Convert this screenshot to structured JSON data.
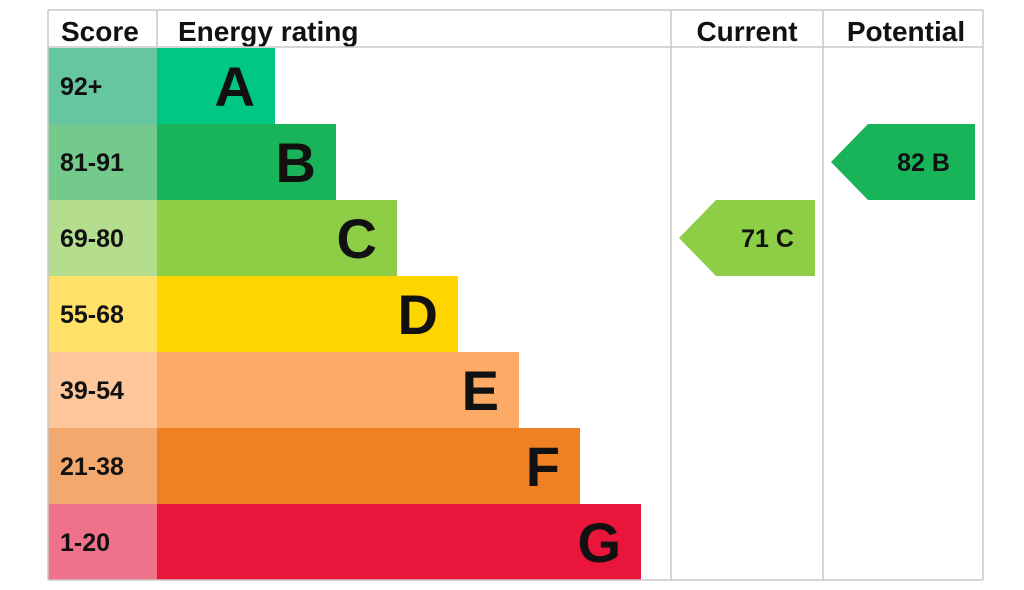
{
  "chart_data": {
    "type": "bar",
    "headers": {
      "score": "Score",
      "rating": "Energy rating",
      "current": "Current",
      "potential": "Potential"
    },
    "bands": [
      {
        "score": "92+",
        "letter": "A",
        "color": "#00c781",
        "score_color": "#67c6a2"
      },
      {
        "score": "81-91",
        "letter": "B",
        "color": "#19b459",
        "score_color": "#74c98c"
      },
      {
        "score": "69-80",
        "letter": "C",
        "color": "#8dce46",
        "score_color": "#b5dd8e"
      },
      {
        "score": "55-68",
        "letter": "D",
        "color": "#ffd500",
        "score_color": "#ffe16a"
      },
      {
        "score": "39-54",
        "letter": "E",
        "color": "#fcaa65",
        "score_color": "#fdc79b"
      },
      {
        "score": "21-38",
        "letter": "F",
        "color": "#ef8023",
        "score_color": "#f3a96e"
      },
      {
        "score": "1-20",
        "letter": "G",
        "color": "#e9153b",
        "score_color": "#f0728a"
      }
    ],
    "current": {
      "value": 71,
      "letter": "C",
      "label": "71 C",
      "color": "#8dce46"
    },
    "potential": {
      "value": 82,
      "letter": "B",
      "label": "82 B",
      "color": "#19b459"
    }
  }
}
